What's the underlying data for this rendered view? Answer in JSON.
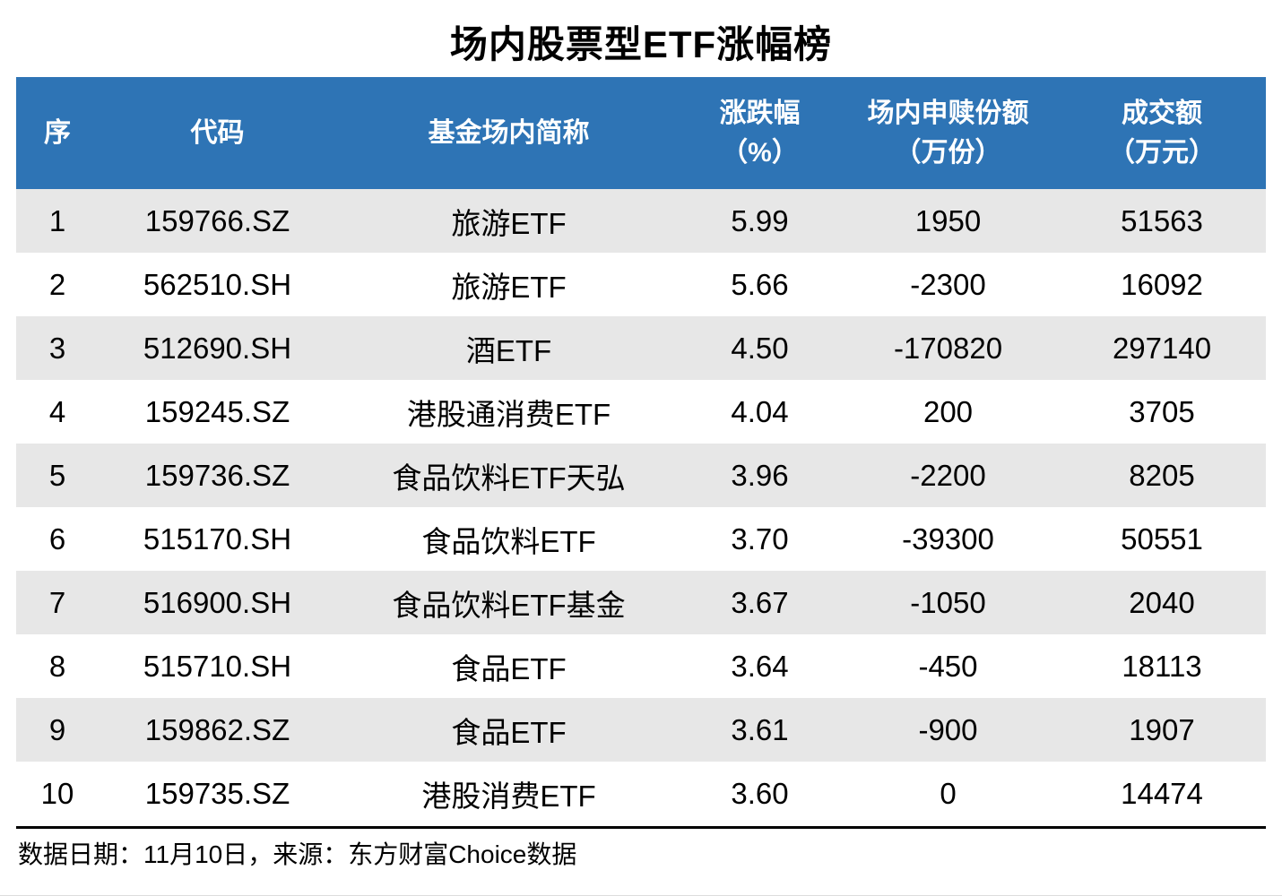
{
  "title": "场内股票型ETF涨幅榜",
  "colors": {
    "header_bg": "#2E74B5",
    "header_text": "#FFFFFF",
    "stripe_bg": "#E7E7E7",
    "row_bg": "#FFFFFF",
    "text": "#000000"
  },
  "table": {
    "columns": [
      {
        "key": "seq",
        "label": "序",
        "sub": ""
      },
      {
        "key": "code",
        "label": "代码",
        "sub": ""
      },
      {
        "key": "name",
        "label": "基金场内简称",
        "sub": ""
      },
      {
        "key": "change",
        "label": "涨跌幅",
        "sub": "（%）"
      },
      {
        "key": "shares",
        "label": "场内申赎份额",
        "sub": "（万份）"
      },
      {
        "key": "turnover",
        "label": "成交额",
        "sub": "（万元）"
      }
    ],
    "rows": [
      {
        "seq": "1",
        "code": "159766.SZ",
        "name": "旅游ETF",
        "change": "5.99",
        "shares": "1950",
        "turnover": "51563"
      },
      {
        "seq": "2",
        "code": "562510.SH",
        "name": "旅游ETF",
        "change": "5.66",
        "shares": "-2300",
        "turnover": "16092"
      },
      {
        "seq": "3",
        "code": "512690.SH",
        "name": "酒ETF",
        "change": "4.50",
        "shares": "-170820",
        "turnover": "297140"
      },
      {
        "seq": "4",
        "code": "159245.SZ",
        "name": "港股通消费ETF",
        "change": "4.04",
        "shares": "200",
        "turnover": "3705"
      },
      {
        "seq": "5",
        "code": "159736.SZ",
        "name": "食品饮料ETF天弘",
        "change": "3.96",
        "shares": "-2200",
        "turnover": "8205"
      },
      {
        "seq": "6",
        "code": "515170.SH",
        "name": "食品饮料ETF",
        "change": "3.70",
        "shares": "-39300",
        "turnover": "50551"
      },
      {
        "seq": "7",
        "code": "516900.SH",
        "name": "食品饮料ETF基金",
        "change": "3.67",
        "shares": "-1050",
        "turnover": "2040"
      },
      {
        "seq": "8",
        "code": "515710.SH",
        "name": "食品ETF",
        "change": "3.64",
        "shares": "-450",
        "turnover": "18113"
      },
      {
        "seq": "9",
        "code": "159862.SZ",
        "name": "食品ETF",
        "change": "3.61",
        "shares": "-900",
        "turnover": "1907"
      },
      {
        "seq": "10",
        "code": "159735.SZ",
        "name": "港股消费ETF",
        "change": "3.60",
        "shares": "0",
        "turnover": "14474"
      }
    ]
  },
  "footer": {
    "text": "数据日期：11月10日，来源：东方财富Choice数据"
  }
}
